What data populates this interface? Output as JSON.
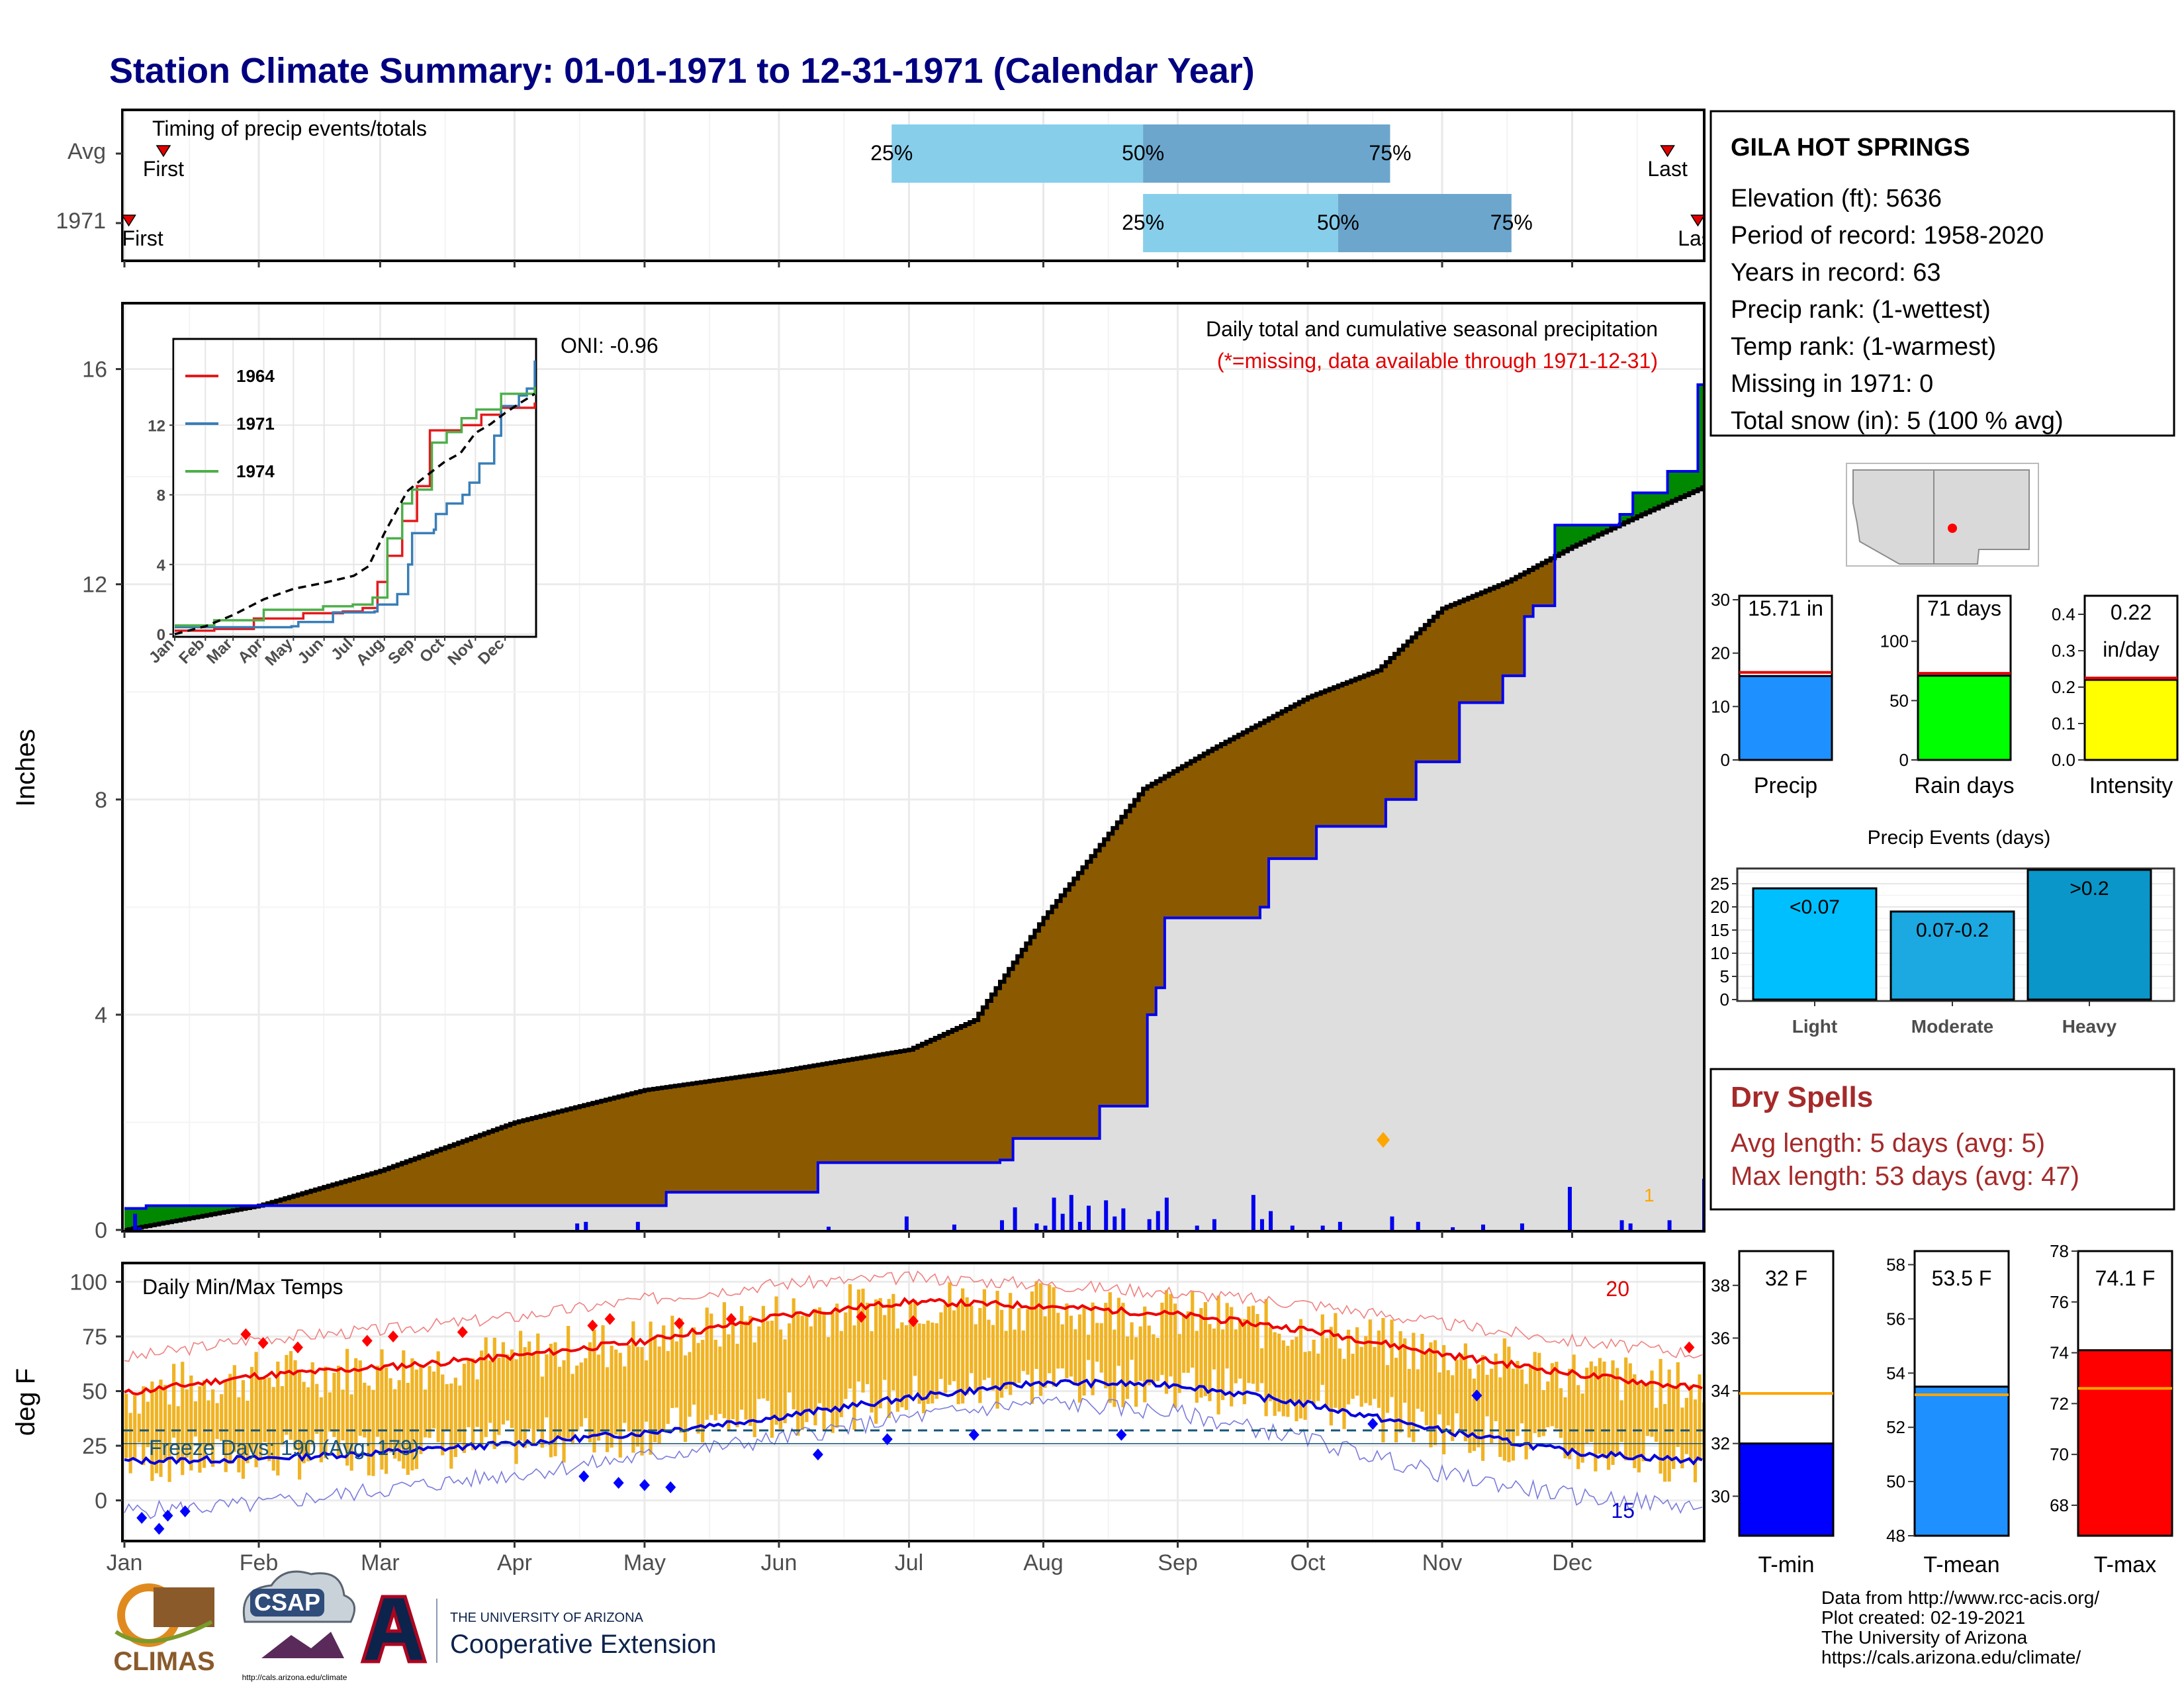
{
  "title": "Station Climate Summary: 01-01-1971 to 12-31-1971 (Calendar Year)",
  "months": [
    "Jan",
    "Feb",
    "Mar",
    "Apr",
    "May",
    "Jun",
    "Jul",
    "Aug",
    "Sep",
    "Oct",
    "Nov",
    "Dec"
  ],
  "timing": {
    "label": "Timing of precip events/totals",
    "rows": [
      {
        "name": "Avg",
        "first_label": "First",
        "last_label": "Last",
        "first_doy": 9,
        "last_doy": 356,
        "q25_doy": 177,
        "q50_doy": 235,
        "q75_doy": 292
      },
      {
        "name": "1971",
        "first_label": "First",
        "last_label": "Last",
        "first_doy": 1,
        "last_doy": 363,
        "q25_doy": 235,
        "q50_doy": 280,
        "q75_doy": 320
      }
    ],
    "q_labels": [
      "25%",
      "50%",
      "75%"
    ]
  },
  "main_chart": {
    "ylabel": "Inches",
    "yticks": [
      0,
      4,
      8,
      12,
      16
    ],
    "ylim": [
      0,
      17.2
    ],
    "caption_line1": "Daily total and cumulative seasonal precipitation",
    "caption_line2": "(*=missing, data available through 1971-12-31)",
    "oni": "ONI: -0.96",
    "snow_marker": "1",
    "avg_cumulative": [
      [
        0,
        0
      ],
      [
        31,
        0.45
      ],
      [
        59,
        1.1
      ],
      [
        90,
        2.0
      ],
      [
        120,
        2.6
      ],
      [
        151,
        2.95
      ],
      [
        181,
        3.35
      ],
      [
        196,
        3.9
      ],
      [
        212,
        5.8
      ],
      [
        235,
        8.2
      ],
      [
        250,
        8.9
      ],
      [
        273,
        9.9
      ],
      [
        289,
        10.4
      ],
      [
        304,
        11.55
      ],
      [
        319,
        12.05
      ],
      [
        334,
        12.7
      ],
      [
        350,
        13.3
      ],
      [
        364,
        13.8
      ]
    ],
    "cumulative_1971": [
      [
        0,
        0.4
      ],
      [
        5,
        0.45
      ],
      [
        118,
        0.45
      ],
      [
        125,
        0.7
      ],
      [
        160,
        1.25
      ],
      [
        202,
        1.3
      ],
      [
        205,
        1.7
      ],
      [
        225,
        2.3
      ],
      [
        236,
        4.0
      ],
      [
        238,
        4.5
      ],
      [
        240,
        5.8
      ],
      [
        262,
        6.0
      ],
      [
        264,
        6.9
      ],
      [
        275,
        7.5
      ],
      [
        291,
        8.0
      ],
      [
        298,
        8.7
      ],
      [
        308,
        9.8
      ],
      [
        318,
        10.3
      ],
      [
        323,
        11.4
      ],
      [
        325,
        11.6
      ],
      [
        330,
        13.1
      ],
      [
        345,
        13.3
      ],
      [
        348,
        13.7
      ],
      [
        356,
        14.1
      ],
      [
        362,
        14.1
      ],
      [
        363,
        15.71
      ],
      [
        364,
        15.71
      ]
    ],
    "daily_bars": [
      [
        2,
        0.3
      ],
      [
        3,
        0.05
      ],
      [
        104,
        0.12
      ],
      [
        106,
        0.15
      ],
      [
        118,
        0.15
      ],
      [
        162,
        0.06
      ],
      [
        180,
        0.25
      ],
      [
        191,
        0.1
      ],
      [
        202,
        0.18
      ],
      [
        205,
        0.42
      ],
      [
        210,
        0.12
      ],
      [
        212,
        0.08
      ],
      [
        214,
        0.6
      ],
      [
        216,
        0.3
      ],
      [
        218,
        0.65
      ],
      [
        220,
        0.15
      ],
      [
        222,
        0.45
      ],
      [
        226,
        0.55
      ],
      [
        228,
        0.25
      ],
      [
        230,
        0.4
      ],
      [
        236,
        0.2
      ],
      [
        238,
        0.35
      ],
      [
        240,
        0.6
      ],
      [
        247,
        0.08
      ],
      [
        251,
        0.2
      ],
      [
        260,
        0.65
      ],
      [
        262,
        0.2
      ],
      [
        264,
        0.35
      ],
      [
        269,
        0.08
      ],
      [
        276,
        0.08
      ],
      [
        280,
        0.15
      ],
      [
        292,
        0.25
      ],
      [
        298,
        0.15
      ],
      [
        306,
        0.05
      ],
      [
        313,
        0.1
      ],
      [
        322,
        0.12
      ],
      [
        333,
        0.8
      ],
      [
        345,
        0.18
      ],
      [
        347,
        0.12
      ],
      [
        356,
        0.18
      ],
      [
        364,
        0.95
      ]
    ]
  },
  "inset": {
    "yticks": [
      0,
      4,
      8,
      12
    ],
    "months": [
      "Jan",
      "Feb",
      "Mar",
      "Apr",
      "May",
      "Jun",
      "Jul",
      "Aug",
      "Sep",
      "Oct",
      "Nov",
      "Dec"
    ],
    "series": [
      {
        "name": "1964",
        "color": "#e41a1c",
        "points": [
          [
            0,
            0.2
          ],
          [
            40,
            0.3
          ],
          [
            80,
            0.9
          ],
          [
            130,
            1.2
          ],
          [
            170,
            1.3
          ],
          [
            190,
            1.5
          ],
          [
            205,
            3.0
          ],
          [
            215,
            4.5
          ],
          [
            230,
            6.5
          ],
          [
            245,
            8.5
          ],
          [
            258,
            11.7
          ],
          [
            275,
            11.7
          ],
          [
            290,
            12.0
          ],
          [
            310,
            12.6
          ],
          [
            330,
            13.0
          ],
          [
            364,
            13.3
          ]
        ]
      },
      {
        "name": "1971",
        "color": "#377eb8",
        "points": [
          [
            0,
            0.4
          ],
          [
            118,
            0.45
          ],
          [
            125,
            0.7
          ],
          [
            160,
            1.25
          ],
          [
            202,
            1.3
          ],
          [
            205,
            1.7
          ],
          [
            225,
            2.3
          ],
          [
            236,
            4.0
          ],
          [
            240,
            5.8
          ],
          [
            262,
            6.0
          ],
          [
            264,
            6.9
          ],
          [
            275,
            7.5
          ],
          [
            291,
            8.0
          ],
          [
            298,
            8.7
          ],
          [
            308,
            9.8
          ],
          [
            323,
            11.4
          ],
          [
            330,
            13.1
          ],
          [
            348,
            13.7
          ],
          [
            356,
            14.1
          ],
          [
            364,
            15.71
          ]
        ]
      },
      {
        "name": "1974",
        "color": "#4daf4a",
        "points": [
          [
            0,
            0.5
          ],
          [
            40,
            0.8
          ],
          [
            90,
            1.4
          ],
          [
            150,
            1.6
          ],
          [
            180,
            1.7
          ],
          [
            200,
            2.1
          ],
          [
            215,
            5.5
          ],
          [
            230,
            7.5
          ],
          [
            240,
            8.3
          ],
          [
            260,
            11.0
          ],
          [
            275,
            11.6
          ],
          [
            290,
            12.4
          ],
          [
            305,
            12.9
          ],
          [
            330,
            13.8
          ],
          [
            364,
            14.2
          ]
        ]
      }
    ],
    "avg": [
      [
        0,
        0
      ],
      [
        31,
        0.45
      ],
      [
        59,
        1.1
      ],
      [
        90,
        2.0
      ],
      [
        120,
        2.6
      ],
      [
        151,
        2.95
      ],
      [
        181,
        3.35
      ],
      [
        196,
        3.9
      ],
      [
        212,
        5.8
      ],
      [
        235,
        8.2
      ],
      [
        250,
        8.9
      ],
      [
        273,
        9.9
      ],
      [
        289,
        10.4
      ],
      [
        304,
        11.55
      ],
      [
        319,
        12.05
      ],
      [
        334,
        12.7
      ],
      [
        350,
        13.3
      ],
      [
        364,
        13.8
      ]
    ]
  },
  "station": {
    "name": "GILA HOT SPRINGS",
    "lines": [
      "Elevation (ft): 5636",
      "Period of record: 1958-2020",
      "Years in record: 63",
      "Precip rank:  (1-wettest)",
      "Temp rank:  (1-warmest)",
      "Missing in 1971: 0",
      "Total snow (in): 5 (100 % avg)"
    ]
  },
  "precip_bars": [
    {
      "label": "Precip",
      "value_label": "15.71 in",
      "value": 15.71,
      "avg": 16.4,
      "ymax": 30,
      "yticks": [
        0,
        10,
        20,
        30
      ],
      "color": "#1e90ff"
    },
    {
      "label": "Rain days",
      "value_label": "71 days",
      "value": 71,
      "avg": 73,
      "ymax": 135,
      "yticks": [
        0,
        50,
        100
      ],
      "color": "#00ff00"
    },
    {
      "label": "Intensity",
      "value_label": "0.22 in/day",
      "value_label_lines": [
        "0.22",
        "in/day"
      ],
      "value": 0.22,
      "avg": 0.225,
      "ymax": 0.44,
      "yticks": [
        0.0,
        0.1,
        0.2,
        0.3,
        0.4
      ],
      "color": "#ffff00"
    }
  ],
  "precip_events": {
    "title": "Precip Events (days)",
    "yticks": [
      0,
      5,
      10,
      15,
      20,
      25
    ],
    "ymax": 28,
    "categories": [
      "Light",
      "Moderate",
      "Heavy"
    ],
    "bar_labels": [
      "<0.07",
      "0.07-0.2",
      ">0.2"
    ],
    "values": [
      24,
      19,
      28
    ],
    "colors": [
      "#00bfff",
      "#1ca8e0",
      "#0a96c8"
    ]
  },
  "dry_spells": {
    "title": "Dry Spells",
    "lines": [
      "Avg length: 5 days (avg: 5)",
      "Max length: 53 days (avg: 47)"
    ]
  },
  "temp_chart": {
    "label": "Daily Min/Max Temps",
    "ylabel": "deg F",
    "yticks": [
      0,
      25,
      50,
      75,
      100
    ],
    "ylim": [
      -18,
      108
    ],
    "freeze_label": "Freeze Days: 190 (Avg: 179)",
    "freeze_line": 32,
    "freeze_line2": 26,
    "count_max": "20",
    "count_min": "15",
    "avg_max": [
      [
        0,
        49
      ],
      [
        30,
        57
      ],
      [
        60,
        61
      ],
      [
        90,
        66
      ],
      [
        120,
        73
      ],
      [
        150,
        84
      ],
      [
        181,
        91
      ],
      [
        212,
        89
      ],
      [
        243,
        85
      ],
      [
        273,
        78
      ],
      [
        304,
        67
      ],
      [
        334,
        58
      ],
      [
        364,
        51
      ]
    ],
    "avg_min": [
      [
        0,
        18
      ],
      [
        30,
        19
      ],
      [
        60,
        22
      ],
      [
        90,
        26
      ],
      [
        120,
        31
      ],
      [
        150,
        38
      ],
      [
        181,
        47
      ],
      [
        212,
        54
      ],
      [
        243,
        53
      ],
      [
        273,
        44
      ],
      [
        304,
        32
      ],
      [
        334,
        22
      ],
      [
        364,
        18
      ]
    ],
    "rec_max": [
      [
        0,
        65
      ],
      [
        30,
        74
      ],
      [
        60,
        78
      ],
      [
        90,
        84
      ],
      [
        120,
        92
      ],
      [
        150,
        99
      ],
      [
        181,
        102
      ],
      [
        212,
        99
      ],
      [
        243,
        95
      ],
      [
        273,
        90
      ],
      [
        304,
        81
      ],
      [
        334,
        73
      ],
      [
        364,
        67
      ]
    ],
    "rec_min": [
      [
        0,
        -5
      ],
      [
        30,
        -2
      ],
      [
        60,
        5
      ],
      [
        90,
        12
      ],
      [
        120,
        20
      ],
      [
        150,
        28
      ],
      [
        181,
        38
      ],
      [
        212,
        45
      ],
      [
        243,
        40
      ],
      [
        273,
        28
      ],
      [
        304,
        12
      ],
      [
        334,
        2
      ],
      [
        364,
        -3
      ]
    ]
  },
  "temp_bars": [
    {
      "label": "T-min",
      "value_label": "32 F",
      "value": 32,
      "avg": 33.9,
      "ymin": 28.5,
      "ymax": 39.3,
      "yticks": [
        30,
        32,
        34,
        36,
        38
      ],
      "color": "#0000ff"
    },
    {
      "label": "T-mean",
      "value_label": "53.5 F",
      "value": 53.5,
      "avg": 53.2,
      "ymin": 48,
      "ymax": 58.5,
      "yticks": [
        48,
        50,
        52,
        54,
        56,
        58
      ],
      "color": "#1e90ff"
    },
    {
      "label": "T-max",
      "value_label": "74.1 F",
      "value": 74.1,
      "avg": 72.6,
      "ymin": 66.8,
      "ymax": 78,
      "yticks": [
        68,
        70,
        72,
        74,
        76,
        78
      ],
      "color": "#ff0000"
    }
  ],
  "footer": {
    "credits": [
      "Data from http://www.rcc-acis.org/",
      "Plot created: 02-19-2021",
      "The University of Arizona",
      "https://cals.arizona.edu/climate/"
    ],
    "logo_climas": "CLIMAS",
    "logo_csap": "CSAP",
    "logo_csap_url": "http://cals.arizona.edu/climate",
    "ua_line1": "THE UNIVERSITY OF ARIZONA",
    "ua_line2": "Cooperative Extension"
  }
}
